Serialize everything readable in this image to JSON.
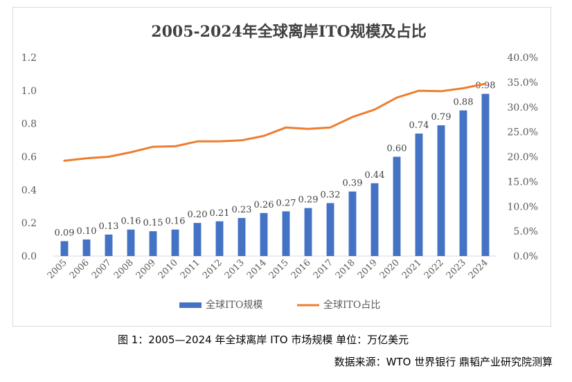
{
  "chart_data": {
    "type": "bar+line",
    "title": "2005-2024年全球离岸ITO规模及占比",
    "categories": [
      "2005",
      "2006",
      "2007",
      "2008",
      "2009",
      "2010",
      "2011",
      "2012",
      "2013",
      "2014",
      "2015",
      "2016",
      "2017",
      "2018",
      "2019",
      "2020",
      "2021",
      "2022",
      "2023",
      "2024"
    ],
    "series": [
      {
        "name": "全球ITO规模",
        "type": "bar",
        "axis": "left",
        "color": "#4472C4",
        "values": [
          0.09,
          0.1,
          0.13,
          0.16,
          0.15,
          0.16,
          0.2,
          0.21,
          0.23,
          0.26,
          0.27,
          0.29,
          0.32,
          0.39,
          0.44,
          0.6,
          0.74,
          0.79,
          0.88,
          0.98
        ],
        "labels": [
          "0.09",
          "0.10",
          "0.13",
          "0.16",
          "0.15",
          "0.16",
          "0.20",
          "0.21",
          "0.23",
          "0.26",
          "0.27",
          "0.29",
          "0.32",
          "0.39",
          "0.44",
          "0.60",
          "0.74",
          "0.79",
          "0.88",
          "0.98"
        ]
      },
      {
        "name": "全球ITO占比",
        "type": "line",
        "axis": "right",
        "color": "#ED7D31",
        "values": [
          19.2,
          19.7,
          20.0,
          20.9,
          22.0,
          22.1,
          23.1,
          23.1,
          23.3,
          24.2,
          25.9,
          25.6,
          25.9,
          28.0,
          29.5,
          31.9,
          33.3,
          33.2,
          33.8,
          34.7
        ]
      }
    ],
    "y_left": {
      "ylim": [
        0,
        1.2
      ],
      "ticks": [
        "0.0",
        "0.2",
        "0.4",
        "0.6",
        "0.8",
        "1.0",
        "1.2"
      ]
    },
    "y_right": {
      "ylim": [
        0,
        40
      ],
      "ticks": [
        "0.0%",
        "5.0%",
        "10.0%",
        "15.0%",
        "20.0%",
        "25.0%",
        "30.0%",
        "35.0%",
        "40.0%"
      ]
    },
    "legend_position": "bottom",
    "grid": false
  },
  "captions": {
    "figure": "图 1：2005—2024 年全球离岸 ITO 市场规模  单位：万亿美元",
    "source": "数据来源：WTO 世界银行 鼎韬产业研究院测算"
  }
}
